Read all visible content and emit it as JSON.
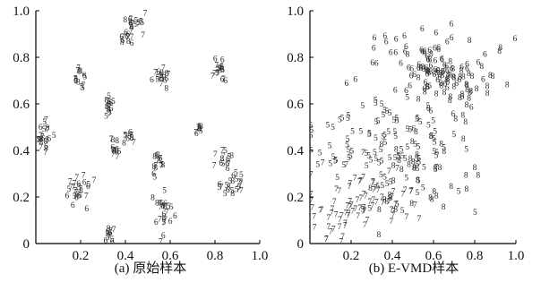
{
  "figure": {
    "panels": [
      {
        "caption": "(a) 原始样本"
      },
      {
        "caption": "(b) E-VMD样本"
      }
    ]
  },
  "chart_data": [
    {
      "type": "scatter",
      "title": "",
      "caption": "(a) 原始样本",
      "xlabel": "",
      "ylabel": "",
      "xlim": [
        0.0,
        1.0
      ],
      "ylim": [
        0.0,
        1.0
      ],
      "x_ticks": [
        "0.2",
        "0.4",
        "0.6",
        "0.8",
        "1.0"
      ],
      "y_ticks": [
        "0",
        "0.2",
        "0.4",
        "0.6",
        "0.8",
        "1.0"
      ],
      "grid": false,
      "legend": "none",
      "marker": "digit-glyph",
      "clusters": [
        {
          "center": [
            0.43,
            0.92
          ],
          "spread": [
            0.025,
            0.035
          ],
          "count": 28
        },
        {
          "center": [
            0.19,
            0.72
          ],
          "spread": [
            0.012,
            0.025
          ],
          "count": 14
        },
        {
          "center": [
            0.56,
            0.72
          ],
          "spread": [
            0.028,
            0.025
          ],
          "count": 18
        },
        {
          "center": [
            0.82,
            0.74
          ],
          "spread": [
            0.02,
            0.025
          ],
          "count": 18
        },
        {
          "center": [
            0.33,
            0.6
          ],
          "spread": [
            0.012,
            0.025
          ],
          "count": 14
        },
        {
          "center": [
            0.04,
            0.46
          ],
          "spread": [
            0.018,
            0.035
          ],
          "count": 22
        },
        {
          "center": [
            0.73,
            0.5
          ],
          "spread": [
            0.01,
            0.015
          ],
          "count": 9
        },
        {
          "center": [
            0.42,
            0.46
          ],
          "spread": [
            0.012,
            0.015
          ],
          "count": 10
        },
        {
          "center": [
            0.35,
            0.41
          ],
          "spread": [
            0.012,
            0.02
          ],
          "count": 12
        },
        {
          "center": [
            0.55,
            0.35
          ],
          "spread": [
            0.015,
            0.03
          ],
          "count": 14
        },
        {
          "center": [
            0.85,
            0.37
          ],
          "spread": [
            0.02,
            0.02
          ],
          "count": 14
        },
        {
          "center": [
            0.19,
            0.22
          ],
          "spread": [
            0.03,
            0.03
          ],
          "count": 26
        },
        {
          "center": [
            0.88,
            0.25
          ],
          "spread": [
            0.03,
            0.025
          ],
          "count": 22
        },
        {
          "center": [
            0.57,
            0.13
          ],
          "spread": [
            0.02,
            0.04
          ],
          "count": 24
        },
        {
          "center": [
            0.33,
            0.03
          ],
          "spread": [
            0.012,
            0.025
          ],
          "count": 12
        }
      ],
      "glyphs": [
        "5",
        "6",
        "7",
        "8"
      ]
    },
    {
      "type": "scatter",
      "title": "",
      "caption": "(b) E-VMD样本",
      "xlabel": "",
      "ylabel": "",
      "xlim": [
        0.0,
        1.0
      ],
      "ylim": [
        0.0,
        1.0
      ],
      "x_ticks": [
        "0.2",
        "0.4",
        "0.6",
        "0.8",
        "1.0"
      ],
      "y_ticks": [
        "0",
        "0.2",
        "0.4",
        "0.6",
        "0.8",
        "1.0"
      ],
      "grid": false,
      "legend": "none",
      "marker": "digit-glyph",
      "clusters": [
        {
          "glyph": "6",
          "center": [
            0.52,
            0.76
          ],
          "spread": [
            0.17,
            0.09
          ],
          "count": 80
        },
        {
          "glyph": "8",
          "center": [
            0.68,
            0.7
          ],
          "spread": [
            0.12,
            0.08
          ],
          "count": 60
        },
        {
          "glyph": "5",
          "center": [
            0.36,
            0.42
          ],
          "spread": [
            0.18,
            0.12
          ],
          "count": 110
        },
        {
          "glyph": "7",
          "center": [
            0.25,
            0.17
          ],
          "spread": [
            0.15,
            0.08
          ],
          "count": 85
        },
        {
          "glyph": "8",
          "center": [
            0.58,
            0.28
          ],
          "spread": [
            0.15,
            0.1
          ],
          "count": 40
        }
      ]
    }
  ]
}
